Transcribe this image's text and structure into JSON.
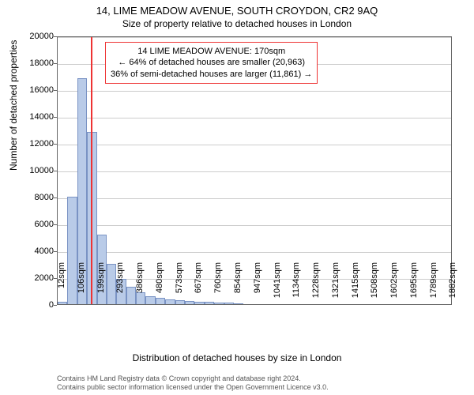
{
  "chart": {
    "type": "histogram",
    "title": "14, LIME MEADOW AVENUE, SOUTH CROYDON, CR2 9AQ",
    "subtitle": "Size of property relative to detached houses in London",
    "ylabel": "Number of detached properties",
    "xlabel": "Distribution of detached houses by size in London",
    "ylim": [
      0,
      20000
    ],
    "ytick_step": 2000,
    "yticks": [
      0,
      2000,
      4000,
      6000,
      8000,
      10000,
      12000,
      14000,
      16000,
      18000,
      20000
    ],
    "x_min": 12,
    "x_max": 1900,
    "xticks": [
      12,
      106,
      199,
      293,
      386,
      480,
      573,
      667,
      760,
      854,
      947,
      1041,
      1134,
      1228,
      1321,
      1415,
      1508,
      1602,
      1695,
      1789,
      1882
    ],
    "xtick_labels": [
      "12sqm",
      "106sqm",
      "199sqm",
      "293sqm",
      "386sqm",
      "480sqm",
      "573sqm",
      "667sqm",
      "760sqm",
      "854sqm",
      "947sqm",
      "1041sqm",
      "1134sqm",
      "1228sqm",
      "1321sqm",
      "1415sqm",
      "1508sqm",
      "1602sqm",
      "1695sqm",
      "1789sqm",
      "1882sqm"
    ],
    "bar_color": "#b9cbe8",
    "bar_border": "#7a93c4",
    "grid_color": "#cccccc",
    "axis_color": "#666666",
    "background_color": "#ffffff",
    "marker_color": "#ee3333",
    "marker_x": 170,
    "bars": [
      {
        "x0": 12,
        "x1": 59,
        "y": 200
      },
      {
        "x0": 59,
        "x1": 106,
        "y": 8000
      },
      {
        "x0": 106,
        "x1": 153,
        "y": 16800
      },
      {
        "x0": 153,
        "x1": 199,
        "y": 12800
      },
      {
        "x0": 199,
        "x1": 246,
        "y": 5200
      },
      {
        "x0": 246,
        "x1": 293,
        "y": 3000
      },
      {
        "x0": 293,
        "x1": 340,
        "y": 1900
      },
      {
        "x0": 340,
        "x1": 386,
        "y": 1300
      },
      {
        "x0": 386,
        "x1": 433,
        "y": 900
      },
      {
        "x0": 433,
        "x1": 480,
        "y": 600
      },
      {
        "x0": 480,
        "x1": 527,
        "y": 450
      },
      {
        "x0": 527,
        "x1": 573,
        "y": 350
      },
      {
        "x0": 573,
        "x1": 620,
        "y": 280
      },
      {
        "x0": 620,
        "x1": 667,
        "y": 220
      },
      {
        "x0": 667,
        "x1": 714,
        "y": 180
      },
      {
        "x0": 714,
        "x1": 760,
        "y": 150
      },
      {
        "x0": 760,
        "x1": 807,
        "y": 120
      },
      {
        "x0": 807,
        "x1": 854,
        "y": 100
      },
      {
        "x0": 854,
        "x1": 901,
        "y": 80
      }
    ],
    "annotation": {
      "line1": "14 LIME MEADOW AVENUE: 170sqm",
      "line2": "← 64% of detached houses are smaller (20,963)",
      "line3": "36% of semi-detached houses are larger (11,861) →"
    },
    "license": {
      "line1": "Contains HM Land Registry data © Crown copyright and database right 2024.",
      "line2": "Contains public sector information licensed under the Open Government Licence v3.0."
    }
  }
}
